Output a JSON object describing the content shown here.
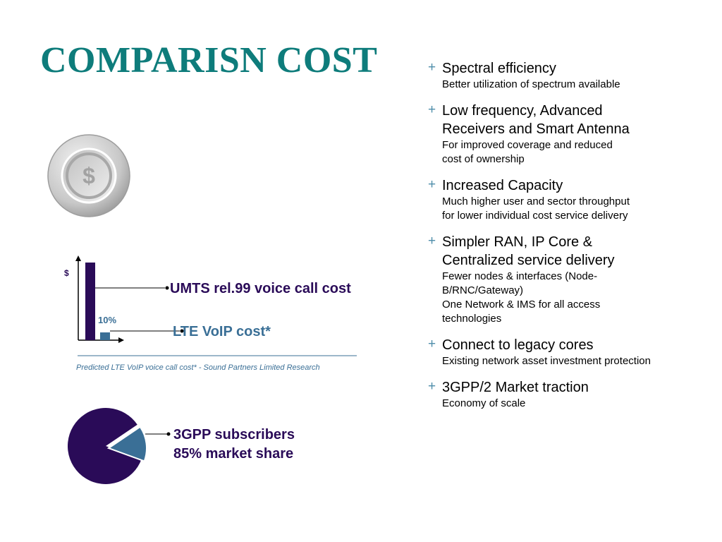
{
  "title": "COMPARISN COST",
  "coin": {
    "icon": "dollar-coin-icon",
    "symbol": "$"
  },
  "colors": {
    "title": "#0e7c7b",
    "dark": "#2a0b58",
    "teal": "#3a6f96",
    "bullet": "#4e8daa"
  },
  "chart_data": [
    {
      "type": "bar",
      "categories": [
        "UMTS rel.99 voice call cost",
        "LTE VoIP cost*"
      ],
      "values": [
        100,
        10
      ],
      "ylabel": "$",
      "data_labels": [
        "",
        "10%"
      ],
      "colors": [
        "#2a0b58",
        "#3a6f96"
      ]
    },
    {
      "type": "pie",
      "categories": [
        "3GPP subscribers 85% market share",
        ""
      ],
      "values": [
        85,
        15
      ],
      "colors": [
        "#2a0b58",
        "#3a6f96"
      ]
    }
  ],
  "labels": {
    "umts": "UMTS rel.99 voice call cost",
    "lte": "LTE VoIP cost*",
    "pct": "10%",
    "footnote": "Predicted LTE VoIP voice call cost* - Sound Partners Limited Research",
    "pie_line1": "3GPP subscribers",
    "pie_line2": "85% market share"
  },
  "bullets": [
    {
      "marker": "+",
      "heading": [
        "Spectral efficiency"
      ],
      "sub": [
        "Better utilization of spectrum available"
      ]
    },
    {
      "marker": "+",
      "heading": [
        "Low frequency, Advanced",
        "Receivers and Smart Antenna"
      ],
      "sub": [
        "For improved coverage and reduced",
        "cost of ownership"
      ]
    },
    {
      "marker": "+",
      "heading": [
        "Increased Capacity"
      ],
      "sub": [
        "Much higher user and sector throughput",
        "for lower individual cost service delivery"
      ]
    },
    {
      "marker": "+",
      "heading": [
        "Simpler RAN, IP Core &",
        "Centralized service delivery"
      ],
      "sub": [
        "Fewer nodes & interfaces (Node-",
        "B/RNC/Gateway)",
        "One Network & IMS for all access",
        "technologies"
      ]
    },
    {
      "marker": "+",
      "heading": [
        "Connect to legacy cores"
      ],
      "sub": [
        "Existing network asset investment protection"
      ]
    },
    {
      "marker": "+",
      "heading": [
        "3GPP/2 Market traction"
      ],
      "sub": [
        "Economy of scale"
      ]
    }
  ]
}
